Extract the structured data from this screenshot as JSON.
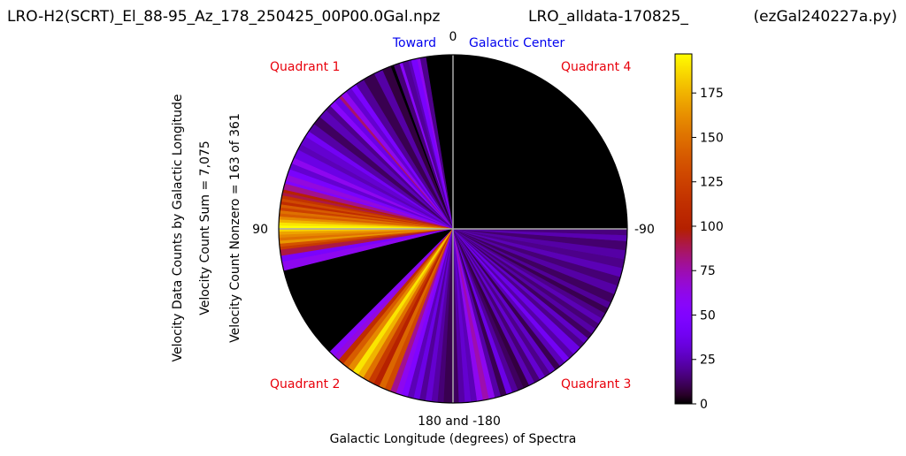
{
  "title": {
    "left": "LRO-H2(SCRT)_El_88-95_Az_178_250425_00P00.0Gal.npz",
    "center": "LRO_alldata-170825_",
    "right": "(ezGal240227a.py)"
  },
  "ylabels": [
    "Velocity Data Counts by Galactic Longitude",
    "Velocity Count Sum = 7,075",
    "Velocity Count Nonzero = 163 of 361"
  ],
  "xlabel": "Galactic Longitude (degrees) of Spectra",
  "angle_labels": {
    "top": "0",
    "left": "90",
    "right": "-90",
    "bottom": "180 and -180"
  },
  "toward_labels": {
    "toward": "Toward",
    "center": "Galactic Center"
  },
  "quadrants": [
    "Quadrant 1",
    "Quadrant 2",
    "Quadrant 3",
    "Quadrant 4"
  ],
  "colors": {
    "quadrant": "#e8000b",
    "toward": "#0000ee",
    "axis_lines": "#aaaaaa",
    "colormap": "gnuplot"
  },
  "chart_data": {
    "type": "polar-wedge-heatmap",
    "theta_units": "galactic longitude (degrees), 0 at top, positive counter-clockwise",
    "colorbar": {
      "min": 0,
      "max": 197,
      "ticks": [
        0,
        25,
        50,
        75,
        100,
        125,
        150,
        175
      ]
    },
    "segments": [
      {
        "from": 0,
        "to": 9,
        "value": 0
      },
      {
        "from": 9,
        "to": 11,
        "value": 18
      },
      {
        "from": 11,
        "to": 12,
        "value": 60
      },
      {
        "from": 12,
        "to": 14,
        "value": 45
      },
      {
        "from": 14,
        "to": 15,
        "value": 25
      },
      {
        "from": 15,
        "to": 17,
        "value": 20
      },
      {
        "from": 17,
        "to": 18,
        "value": 55
      },
      {
        "from": 18,
        "to": 20,
        "value": 15
      },
      {
        "from": 20,
        "to": 21,
        "value": 0
      },
      {
        "from": 21,
        "to": 24,
        "value": 8
      },
      {
        "from": 24,
        "to": 27,
        "value": 22
      },
      {
        "from": 27,
        "to": 31,
        "value": 10
      },
      {
        "from": 31,
        "to": 34,
        "value": 20
      },
      {
        "from": 34,
        "to": 36,
        "value": 45
      },
      {
        "from": 36,
        "to": 38,
        "value": 30
      },
      {
        "from": 38,
        "to": 40,
        "value": 60
      },
      {
        "from": 40,
        "to": 41,
        "value": 85
      },
      {
        "from": 41,
        "to": 43,
        "value": 35
      },
      {
        "from": 43,
        "to": 45,
        "value": 55
      },
      {
        "from": 45,
        "to": 47,
        "value": 18
      },
      {
        "from": 47,
        "to": 50,
        "value": 25
      },
      {
        "from": 50,
        "to": 53,
        "value": 12
      },
      {
        "from": 53,
        "to": 56,
        "value": 22
      },
      {
        "from": 56,
        "to": 58,
        "value": 40
      },
      {
        "from": 58,
        "to": 61,
        "value": 30
      },
      {
        "from": 61,
        "to": 63,
        "value": 25
      },
      {
        "from": 63,
        "to": 66,
        "value": 35
      },
      {
        "from": 66,
        "to": 68,
        "value": 60
      },
      {
        "from": 68,
        "to": 70,
        "value": 30
      },
      {
        "from": 70,
        "to": 72,
        "value": 45
      },
      {
        "from": 72,
        "to": 74,
        "value": 65
      },
      {
        "from": 74,
        "to": 75,
        "value": 50
      },
      {
        "from": 75,
        "to": 77,
        "value": 80
      },
      {
        "from": 77,
        "to": 78,
        "value": 100
      },
      {
        "from": 78,
        "to": 79,
        "value": 90
      },
      {
        "from": 79,
        "to": 80,
        "value": 115
      },
      {
        "from": 80,
        "to": 81,
        "value": 130
      },
      {
        "from": 81,
        "to": 82,
        "value": 110
      },
      {
        "from": 82,
        "to": 83,
        "value": 140
      },
      {
        "from": 83,
        "to": 84,
        "value": 125
      },
      {
        "from": 84,
        "to": 85,
        "value": 150
      },
      {
        "from": 85,
        "to": 86,
        "value": 140
      },
      {
        "from": 86,
        "to": 87,
        "value": 160
      },
      {
        "from": 87,
        "to": 88,
        "value": 175
      },
      {
        "from": 88,
        "to": 89,
        "value": 190
      },
      {
        "from": 89,
        "to": 90,
        "value": 197
      },
      {
        "from": 90,
        "to": 91,
        "value": 185
      },
      {
        "from": 91,
        "to": 92,
        "value": 170
      },
      {
        "from": 92,
        "to": 93,
        "value": 160
      },
      {
        "from": 93,
        "to": 94,
        "value": 150
      },
      {
        "from": 94,
        "to": 95,
        "value": 165
      },
      {
        "from": 95,
        "to": 96,
        "value": 135
      },
      {
        "from": 96,
        "to": 97,
        "value": 120
      },
      {
        "from": 97,
        "to": 99,
        "value": 90
      },
      {
        "from": 99,
        "to": 101,
        "value": 45
      },
      {
        "from": 101,
        "to": 104,
        "value": 60
      },
      {
        "from": 104,
        "to": 135,
        "value": 0
      },
      {
        "from": 135,
        "to": 137,
        "value": 55
      },
      {
        "from": 137,
        "to": 139,
        "value": 65
      },
      {
        "from": 139,
        "to": 141,
        "value": 110
      },
      {
        "from": 141,
        "to": 143,
        "value": 140
      },
      {
        "from": 143,
        "to": 145,
        "value": 160
      },
      {
        "from": 145,
        "to": 147,
        "value": 190
      },
      {
        "from": 147,
        "to": 149,
        "value": 175
      },
      {
        "from": 149,
        "to": 151,
        "value": 150
      },
      {
        "from": 151,
        "to": 153,
        "value": 120
      },
      {
        "from": 153,
        "to": 155,
        "value": 100
      },
      {
        "from": 155,
        "to": 157,
        "value": 145
      },
      {
        "from": 157,
        "to": 159,
        "value": 130
      },
      {
        "from": 159,
        "to": 161,
        "value": 80
      },
      {
        "from": 161,
        "to": 163,
        "value": 60
      },
      {
        "from": 163,
        "to": 165,
        "value": 50
      },
      {
        "from": 165,
        "to": 167,
        "value": 25
      },
      {
        "from": 167,
        "to": 169,
        "value": 35
      },
      {
        "from": 169,
        "to": 171,
        "value": 20
      },
      {
        "from": 171,
        "to": 173,
        "value": 30
      },
      {
        "from": 173,
        "to": 175,
        "value": 22
      },
      {
        "from": 175,
        "to": 177,
        "value": 15
      },
      {
        "from": 177,
        "to": 180,
        "value": 10
      },
      {
        "from": 180,
        "to": 182,
        "value": 12
      },
      {
        "from": 182,
        "to": 184,
        "value": 22
      },
      {
        "from": 184,
        "to": 186,
        "value": 30
      },
      {
        "from": 186,
        "to": 188,
        "value": 25
      },
      {
        "from": 188,
        "to": 190,
        "value": 60
      },
      {
        "from": 190,
        "to": 192,
        "value": 75
      },
      {
        "from": 192,
        "to": 194,
        "value": 60
      },
      {
        "from": 194,
        "to": 196,
        "value": 22
      },
      {
        "from": 196,
        "to": 198,
        "value": 10
      },
      {
        "from": 198,
        "to": 200,
        "value": 35
      },
      {
        "from": 200,
        "to": 202,
        "value": 20
      },
      {
        "from": 202,
        "to": 204,
        "value": 12
      },
      {
        "from": 204,
        "to": 206,
        "value": 8
      },
      {
        "from": 206,
        "to": 208,
        "value": 25
      },
      {
        "from": 208,
        "to": 210,
        "value": 15
      },
      {
        "from": 210,
        "to": 212,
        "value": 30
      },
      {
        "from": 212,
        "to": 214,
        "value": 18
      },
      {
        "from": 214,
        "to": 216,
        "value": 28
      },
      {
        "from": 216,
        "to": 218,
        "value": 10
      },
      {
        "from": 218,
        "to": 220,
        "value": 25
      },
      {
        "from": 220,
        "to": 222,
        "value": 40
      },
      {
        "from": 222,
        "to": 224,
        "value": 22
      },
      {
        "from": 224,
        "to": 227,
        "value": 35
      },
      {
        "from": 227,
        "to": 229,
        "value": 18
      },
      {
        "from": 229,
        "to": 231,
        "value": 28
      },
      {
        "from": 231,
        "to": 233,
        "value": 12
      },
      {
        "from": 233,
        "to": 235,
        "value": 22
      },
      {
        "from": 235,
        "to": 237,
        "value": 15
      },
      {
        "from": 237,
        "to": 239,
        "value": 25
      },
      {
        "from": 239,
        "to": 241,
        "value": 18
      },
      {
        "from": 241,
        "to": 243,
        "value": 10
      },
      {
        "from": 243,
        "to": 245,
        "value": 20
      },
      {
        "from": 245,
        "to": 248,
        "value": 12
      },
      {
        "from": 248,
        "to": 251,
        "value": 22
      },
      {
        "from": 251,
        "to": 254,
        "value": 15
      },
      {
        "from": 254,
        "to": 257,
        "value": 25
      },
      {
        "from": 257,
        "to": 260,
        "value": 18
      },
      {
        "from": 260,
        "to": 263,
        "value": 22
      },
      {
        "from": 263,
        "to": 266,
        "value": 14
      },
      {
        "from": 266,
        "to": 268,
        "value": 24
      },
      {
        "from": 268,
        "to": 270,
        "value": 16
      },
      {
        "from": 270,
        "to": 360,
        "value": 0
      }
    ]
  }
}
